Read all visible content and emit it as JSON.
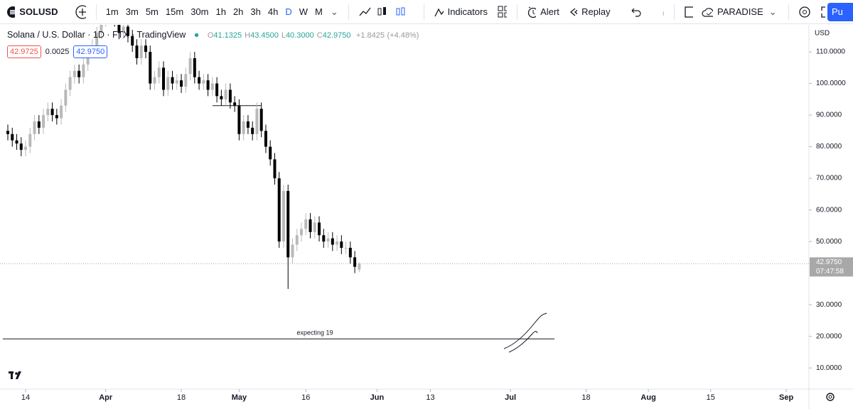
{
  "toolbar": {
    "symbol": "SOLUSD",
    "intervals": [
      "1m",
      "3m",
      "5m",
      "15m",
      "30m",
      "1h",
      "2h",
      "3h",
      "4h",
      "D",
      "W",
      "M"
    ],
    "indicators": "Indicators",
    "alert": "Alert",
    "replay": "Replay",
    "layout_name": "PARADISE",
    "publish": "Pu"
  },
  "legend": {
    "symbol_name": "Solana / U.S. Dollar",
    "interval": "1D",
    "exchange": "FTX",
    "source": "TradingView",
    "ohlc": [
      {
        "label": "O",
        "value": "41.1325"
      },
      {
        "label": "H",
        "value": "43.4500"
      },
      {
        "label": "L",
        "value": "40.3000"
      },
      {
        "label": "C",
        "value": "42.9750"
      }
    ],
    "change": "+1.8425",
    "change_pct": "(+4.48%)",
    "bid": "42.9725",
    "spread": "0.0025",
    "ask": "42.9750"
  },
  "chart_data": {
    "type": "candlestick",
    "open": [
      85,
      84,
      82,
      81,
      79,
      80,
      84,
      88,
      86,
      90,
      92,
      90,
      89,
      93,
      98,
      102,
      104,
      102,
      106,
      110,
      112,
      116,
      120,
      122,
      125,
      120,
      116,
      118,
      115,
      112,
      108,
      112,
      110,
      100,
      102,
      105,
      98,
      102,
      100,
      101,
      99,
      103,
      108,
      102,
      100,
      101,
      98,
      100,
      96,
      95,
      98,
      94,
      93,
      84,
      88,
      86,
      84,
      92,
      85,
      80,
      76,
      70,
      50,
      66,
      45,
      49,
      52,
      54,
      57,
      53,
      56,
      52,
      50,
      51,
      49,
      50,
      48,
      48,
      45,
      41.1325
    ],
    "high": [
      87,
      86,
      84,
      83,
      82,
      86,
      90,
      90,
      92,
      94,
      94,
      92,
      95,
      100,
      104,
      106,
      106,
      108,
      112,
      114,
      118,
      122,
      124,
      127,
      127,
      122,
      120,
      120,
      117,
      114,
      114,
      114,
      112,
      104,
      107,
      107,
      104,
      104,
      103,
      103,
      105,
      110,
      110,
      104,
      103,
      103,
      102,
      102,
      98,
      100,
      100,
      96,
      95,
      90,
      90,
      88,
      94,
      94,
      87,
      82,
      78,
      72,
      68,
      68,
      51,
      54,
      56,
      59,
      59,
      58,
      58,
      54,
      53,
      53,
      52,
      52,
      50,
      50,
      47,
      43.45
    ],
    "low": [
      82,
      80,
      79,
      77,
      77,
      78,
      82,
      84,
      84,
      88,
      88,
      87,
      87,
      91,
      96,
      100,
      100,
      100,
      104,
      108,
      110,
      114,
      118,
      120,
      118,
      114,
      114,
      113,
      110,
      106,
      106,
      108,
      98,
      98,
      100,
      96,
      96,
      98,
      98,
      97,
      97,
      101,
      100,
      98,
      98,
      96,
      96,
      94,
      93,
      93,
      92,
      91,
      82,
      82,
      84,
      82,
      82,
      83,
      78,
      74,
      68,
      48,
      48,
      35,
      43,
      47,
      50,
      52,
      51,
      51,
      50,
      48,
      48,
      47,
      47,
      46,
      46,
      43,
      40,
      40.3
    ],
    "close": [
      84,
      82,
      81,
      79,
      80,
      84,
      88,
      86,
      90,
      92,
      90,
      89,
      93,
      98,
      102,
      104,
      102,
      106,
      110,
      112,
      116,
      120,
      122,
      125,
      120,
      116,
      118,
      115,
      112,
      108,
      112,
      110,
      100,
      102,
      105,
      98,
      102,
      100,
      101,
      99,
      103,
      108,
      102,
      100,
      101,
      98,
      100,
      96,
      95,
      98,
      94,
      93,
      84,
      88,
      86,
      84,
      92,
      85,
      80,
      76,
      70,
      50,
      66,
      45,
      49,
      52,
      54,
      57,
      53,
      56,
      52,
      50,
      51,
      49,
      50,
      48,
      48,
      45,
      42,
      42.975
    ],
    "up_color": "#b9b9b9",
    "down_color": "#000000",
    "xlim": [
      -1.76,
      180.1
    ],
    "xticks": [
      {
        "value": 4,
        "label": "14"
      },
      {
        "value": 22,
        "label": "Apr"
      },
      {
        "value": 39,
        "label": "18"
      },
      {
        "value": 52,
        "label": "May"
      },
      {
        "value": 67,
        "label": "16"
      },
      {
        "value": 83,
        "label": "Jun"
      },
      {
        "value": 95,
        "label": "13"
      },
      {
        "value": 113,
        "label": "Jul"
      },
      {
        "value": 130,
        "label": "18"
      },
      {
        "value": 144,
        "label": "Aug"
      },
      {
        "value": 158,
        "label": "15"
      },
      {
        "value": 175,
        "label": "Sep"
      }
    ],
    "ylim": [
      3.3,
      118.1
    ],
    "yticks": [
      {
        "value": 110,
        "label": "110.0000"
      },
      {
        "value": 100,
        "label": "100.0000"
      },
      {
        "value": 90,
        "label": "90.0000"
      },
      {
        "value": 80,
        "label": "80.0000"
      },
      {
        "value": 70,
        "label": "70.0000"
      },
      {
        "value": 60,
        "label": "60.0000"
      },
      {
        "value": 50,
        "label": "50.0000"
      },
      {
        "value": 30,
        "label": "30.0000"
      },
      {
        "value": 20,
        "label": "20.0000"
      },
      {
        "value": 10,
        "label": "10.0000"
      }
    ],
    "currency": "USD",
    "last_price_label": "42.9750",
    "countdown": "07:47:58",
    "levels": [
      93
    ],
    "annotation": {
      "text": "expecting 19",
      "value": 19.2
    }
  }
}
